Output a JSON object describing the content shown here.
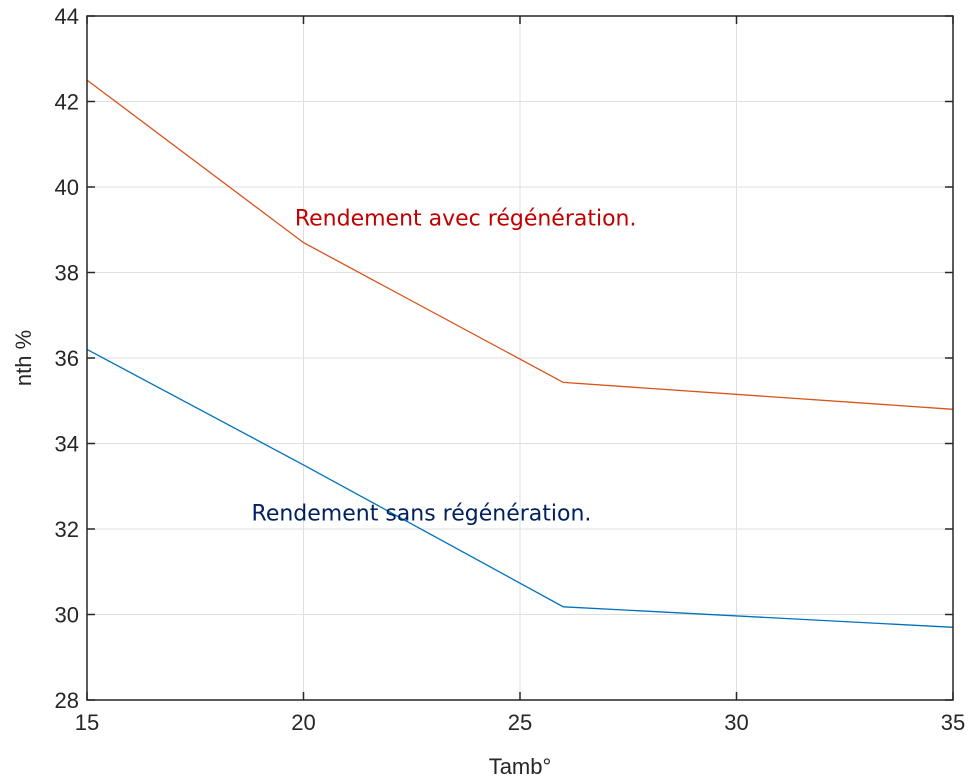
{
  "chart_data": {
    "type": "line",
    "title": "",
    "xlabel": "Tamb°",
    "ylabel": "nth %",
    "xlim": [
      15,
      35
    ],
    "ylim": [
      28,
      44
    ],
    "xticks": [
      15,
      20,
      25,
      30,
      35
    ],
    "yticks": [
      28,
      30,
      32,
      34,
      36,
      38,
      40,
      42,
      44
    ],
    "grid": true,
    "series": [
      {
        "x": [
          15,
          20,
          26,
          35
        ],
        "y": [
          42.5,
          38.7,
          35.43,
          34.8
        ],
        "color": "#D95319"
      },
      {
        "x": [
          15,
          20,
          26,
          35
        ],
        "y": [
          36.2,
          33.5,
          30.18,
          29.7
        ],
        "color": "#0072BD"
      }
    ],
    "annotations": [
      {
        "text": "Rendement avec régénération.",
        "x": 19.8,
        "y": 39.1,
        "color": "#C00000"
      },
      {
        "text": "Rendement sans régénération.",
        "x": 18.8,
        "y": 32.2,
        "color": "#002060"
      }
    ]
  }
}
